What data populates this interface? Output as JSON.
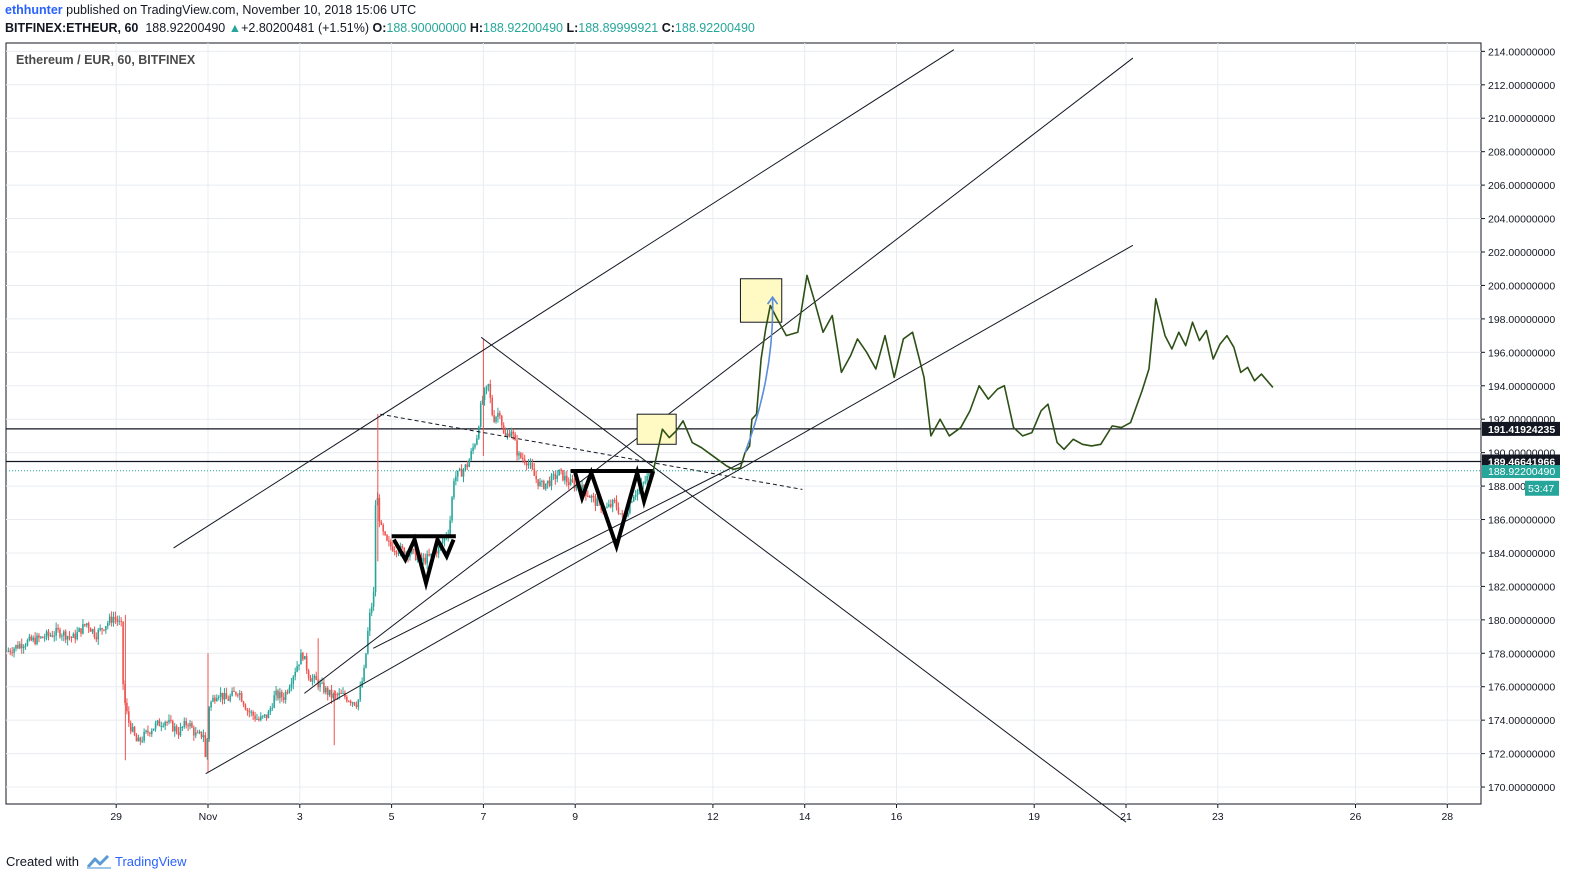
{
  "header": {
    "author": "ethhunter",
    "published": "published on TradingView.com, November 10, 2018 15:06 UTC",
    "symbol": "BITFINEX:ETHEUR, 60",
    "last": "188.92200490",
    "change_arrow": "▲",
    "change": "+2.80200481 (+1.51%)",
    "o_label": "O:",
    "o": "188.90000000",
    "h_label": "H:",
    "h": "188.92200490",
    "l_label": "L:",
    "l": "188.89999921",
    "c_label": "C:",
    "c": "188.92200490"
  },
  "chart_title": "Ethereum / EUR, 60, BITFINEX",
  "footer": {
    "created_with": "Created with",
    "brand": "TradingView",
    "logo_icon": "tradingview-logo-icon"
  },
  "colors": {
    "up": "#26a69a",
    "down": "#ef5350",
    "projection": "#2d5016",
    "arrow": "#5b8ddb",
    "box": "#fff9c4"
  },
  "chart_data": {
    "type": "candlestick",
    "title": "Ethereum / EUR, 60, BITFINEX",
    "ylim": [
      168,
      214.5
    ],
    "y_ticks": [
      "214.00000000",
      "212.00000000",
      "210.00000000",
      "208.00000000",
      "206.00000000",
      "204.00000000",
      "202.00000000",
      "200.00000000",
      "198.00000000",
      "196.00000000",
      "194.00000000",
      "192.00000000",
      "190.00000000",
      "188.00000000",
      "186.00000000",
      "184.00000000",
      "182.00000000",
      "180.00000000",
      "178.00000000",
      "176.00000000",
      "174.00000000",
      "172.00000000",
      "170.00000000"
    ],
    "y_tick_values": [
      214,
      212,
      210,
      208,
      206,
      204,
      202,
      200,
      198,
      196,
      194,
      192,
      190,
      188,
      186,
      184,
      182,
      180,
      178,
      176,
      174,
      172,
      170
    ],
    "x_ticks": [
      {
        "label": "29",
        "t": -2.0
      },
      {
        "label": "Nov",
        "t": 0.0
      },
      {
        "label": "3",
        "t": 2.0
      },
      {
        "label": "5",
        "t": 4.0
      },
      {
        "label": "7",
        "t": 6.0
      },
      {
        "label": "9",
        "t": 8.0
      },
      {
        "label": "12",
        "t": 11.0
      },
      {
        "label": "14",
        "t": 13.0
      },
      {
        "label": "16",
        "t": 15.0
      },
      {
        "label": "19",
        "t": 18.0
      },
      {
        "label": "21",
        "t": 20.0
      },
      {
        "label": "23",
        "t": 22.0
      },
      {
        "label": "26",
        "t": 25.0
      },
      {
        "label": "28",
        "t": 27.0
      }
    ],
    "price_path": [
      [
        -4.35,
        178.1
      ],
      [
        -4.0,
        178.6
      ],
      [
        -3.6,
        178.9
      ],
      [
        -3.2,
        179.3
      ],
      [
        -2.9,
        178.9
      ],
      [
        -2.6,
        179.8
      ],
      [
        -2.4,
        179.1
      ],
      [
        -2.2,
        179.7
      ],
      [
        -2.0,
        180.2
      ],
      [
        -1.85,
        179.6
      ],
      [
        -1.8,
        175.5
      ],
      [
        -1.7,
        174.0
      ],
      [
        -1.5,
        172.6
      ],
      [
        -1.2,
        173.5
      ],
      [
        -0.9,
        174.0
      ],
      [
        -0.6,
        173.3
      ],
      [
        -0.4,
        173.9
      ],
      [
        -0.2,
        173.0
      ],
      [
        -0.05,
        173.2
      ],
      [
        0.0,
        171.0
      ],
      [
        0.05,
        174.8
      ],
      [
        0.25,
        175.7
      ],
      [
        0.45,
        175.2
      ],
      [
        0.7,
        175.8
      ],
      [
        0.9,
        174.6
      ],
      [
        1.15,
        174.0
      ],
      [
        1.35,
        174.3
      ],
      [
        1.5,
        175.5
      ],
      [
        1.7,
        175.4
      ],
      [
        1.95,
        177.1
      ],
      [
        2.1,
        178.0
      ],
      [
        2.25,
        176.6
      ],
      [
        2.4,
        176.3
      ],
      [
        2.55,
        175.9
      ],
      [
        2.75,
        175.4
      ],
      [
        2.95,
        175.5
      ],
      [
        3.1,
        175.3
      ],
      [
        3.3,
        175.0
      ],
      [
        3.45,
        177.0
      ],
      [
        3.55,
        180.0
      ],
      [
        3.65,
        181.5
      ],
      [
        3.7,
        188.0
      ],
      [
        3.8,
        185.5
      ],
      [
        3.95,
        184.5
      ],
      [
        4.2,
        184.2
      ],
      [
        4.5,
        184.0
      ],
      [
        4.7,
        183.5
      ],
      [
        4.9,
        183.8
      ],
      [
        5.1,
        184.4
      ],
      [
        5.3,
        185.5
      ],
      [
        5.4,
        188.5
      ],
      [
        5.55,
        188.8
      ],
      [
        5.7,
        189.3
      ],
      [
        5.9,
        191.0
      ],
      [
        6.0,
        193.0
      ],
      [
        6.15,
        194.0
      ],
      [
        6.25,
        192.0
      ],
      [
        6.4,
        192.5
      ],
      [
        6.5,
        190.8
      ],
      [
        6.65,
        191.4
      ],
      [
        6.8,
        189.8
      ],
      [
        7.0,
        189.5
      ],
      [
        7.15,
        188.6
      ],
      [
        7.3,
        188.0
      ],
      [
        7.5,
        188.3
      ],
      [
        7.7,
        188.8
      ],
      [
        7.9,
        188.2
      ],
      [
        8.1,
        188.0
      ],
      [
        8.3,
        187.6
      ],
      [
        8.5,
        187.0
      ],
      [
        8.7,
        186.6
      ],
      [
        8.9,
        187.0
      ],
      [
        9.1,
        186.0
      ],
      [
        9.3,
        187.5
      ],
      [
        9.5,
        188.0
      ],
      [
        9.7,
        188.9
      ]
    ],
    "projection": [
      [
        9.7,
        188.9
      ],
      [
        9.9,
        191.4
      ],
      [
        10.05,
        190.9
      ],
      [
        10.2,
        191.3
      ],
      [
        10.35,
        191.9
      ],
      [
        10.55,
        190.6
      ],
      [
        10.75,
        190.3
      ],
      [
        10.95,
        189.9
      ],
      [
        11.1,
        189.6
      ],
      [
        11.3,
        189.2
      ],
      [
        11.45,
        189.0
      ],
      [
        11.6,
        189.1
      ],
      [
        11.7,
        190.0
      ],
      [
        11.8,
        190.4
      ],
      [
        11.85,
        192.0
      ],
      [
        11.95,
        192.3
      ],
      [
        12.05,
        195.6
      ],
      [
        12.15,
        197.4
      ],
      [
        12.25,
        198.8
      ],
      [
        12.4,
        198.0
      ],
      [
        12.6,
        197.0
      ],
      [
        12.85,
        197.2
      ],
      [
        13.05,
        200.6
      ],
      [
        13.2,
        199.2
      ],
      [
        13.4,
        197.2
      ],
      [
        13.6,
        198.2
      ],
      [
        13.8,
        194.8
      ],
      [
        14.0,
        195.8
      ],
      [
        14.15,
        196.8
      ],
      [
        14.35,
        196.0
      ],
      [
        14.55,
        195.0
      ],
      [
        14.75,
        197.0
      ],
      [
        14.95,
        194.5
      ],
      [
        15.15,
        196.8
      ],
      [
        15.35,
        197.2
      ],
      [
        15.6,
        194.5
      ],
      [
        15.75,
        191.0
      ],
      [
        15.95,
        192.0
      ],
      [
        16.15,
        191.0
      ],
      [
        16.4,
        191.5
      ],
      [
        16.6,
        192.5
      ],
      [
        16.8,
        194.0
      ],
      [
        17.0,
        193.2
      ],
      [
        17.2,
        193.8
      ],
      [
        17.35,
        194.0
      ],
      [
        17.55,
        191.5
      ],
      [
        17.75,
        191.0
      ],
      [
        17.95,
        191.2
      ],
      [
        18.15,
        192.5
      ],
      [
        18.3,
        192.9
      ],
      [
        18.5,
        190.6
      ],
      [
        18.65,
        190.2
      ],
      [
        18.85,
        190.8
      ],
      [
        19.05,
        190.5
      ],
      [
        19.25,
        190.4
      ],
      [
        19.45,
        190.5
      ],
      [
        19.7,
        191.6
      ],
      [
        19.9,
        191.5
      ],
      [
        20.1,
        191.8
      ],
      [
        20.35,
        193.7
      ],
      [
        20.5,
        195.0
      ],
      [
        20.65,
        199.2
      ],
      [
        20.85,
        197.0
      ],
      [
        21.0,
        196.2
      ],
      [
        21.15,
        197.2
      ],
      [
        21.3,
        196.4
      ],
      [
        21.45,
        197.8
      ],
      [
        21.6,
        196.7
      ],
      [
        21.75,
        197.3
      ],
      [
        21.9,
        195.6
      ],
      [
        22.05,
        196.5
      ],
      [
        22.2,
        197.0
      ],
      [
        22.35,
        196.3
      ],
      [
        22.5,
        194.8
      ],
      [
        22.65,
        195.1
      ],
      [
        22.8,
        194.3
      ],
      [
        22.95,
        194.7
      ],
      [
        23.2,
        193.9
      ]
    ],
    "trendlines": [
      {
        "style": "solid",
        "from": [
          -0.75,
          184.3
        ],
        "to": [
          16.25,
          214.1
        ]
      },
      {
        "style": "solid",
        "from": [
          2.1,
          175.6
        ],
        "to": [
          20.15,
          213.6
        ]
      },
      {
        "style": "solid",
        "from": [
          -0.05,
          170.8
        ],
        "to": [
          20.15,
          202.4
        ]
      },
      {
        "style": "solid",
        "from": [
          5.95,
          196.9
        ],
        "to": [
          20.0,
          167.9
        ]
      },
      {
        "style": "dashed",
        "from": [
          3.75,
          192.3
        ],
        "to": [
          12.95,
          187.8
        ]
      },
      {
        "style": "solid",
        "from": [
          3.6,
          178.3
        ],
        "to": [
          11.7,
          189.5
        ]
      }
    ],
    "horizontal_levels": [
      {
        "value": "191.41924235",
        "y": 191.42
      },
      {
        "value": "189.46641966",
        "y": 189.47
      }
    ],
    "price_badges": [
      {
        "value": "191.41924235",
        "y": 191.42,
        "style": "dark"
      },
      {
        "value": "189.46641966",
        "y": 189.47,
        "style": "dark"
      },
      {
        "value": "188.92200490",
        "y": 188.9,
        "style": "teal"
      },
      {
        "value": "53:47",
        "y": 187.9,
        "style": "teal"
      }
    ],
    "patterns": [
      {
        "name": "w-pattern-1",
        "points": [
          [
            4.05,
            184.8
          ],
          [
            4.3,
            183.6
          ],
          [
            4.5,
            184.8
          ],
          [
            4.75,
            182.2
          ],
          [
            5.0,
            184.8
          ],
          [
            5.2,
            183.8
          ],
          [
            5.35,
            184.8
          ]
        ],
        "neckline": [
          [
            4.0,
            185.0
          ],
          [
            5.4,
            185.0
          ]
        ]
      },
      {
        "name": "w-pattern-2",
        "points": [
          [
            8.0,
            188.8
          ],
          [
            8.15,
            187.3
          ],
          [
            8.35,
            188.8
          ],
          [
            8.9,
            184.4
          ],
          [
            9.35,
            188.8
          ],
          [
            9.5,
            187.1
          ],
          [
            9.7,
            188.9
          ]
        ],
        "neckline": [
          [
            7.9,
            188.9
          ],
          [
            9.7,
            188.9
          ]
        ]
      }
    ],
    "highlight_boxes": [
      {
        "name": "box-breakout",
        "t0": 9.35,
        "t1": 10.2,
        "y0": 190.5,
        "y1": 192.3
      },
      {
        "name": "box-target",
        "t0": 11.6,
        "t1": 12.5,
        "y0": 197.8,
        "y1": 200.4
      }
    ],
    "arrow": {
      "from": [
        11.7,
        190.0
      ],
      "to": [
        12.3,
        199.3
      ]
    }
  }
}
